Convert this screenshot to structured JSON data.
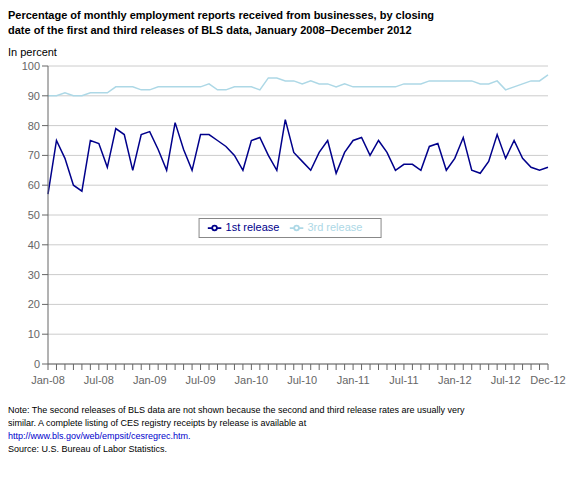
{
  "chart_data": {
    "type": "line",
    "title": "Percentage of monthly employment reports received from businesses, by closing",
    "subtitle": "date of the first and third releases of BLS data, January 2008–December 2012",
    "y_label": "In percent",
    "categories": [
      "Jan-08",
      null,
      null,
      null,
      null,
      null,
      "Jul-08",
      null,
      null,
      null,
      null,
      null,
      "Jan-09",
      null,
      null,
      null,
      null,
      null,
      "Jul-09",
      null,
      null,
      null,
      null,
      null,
      "Jan-10",
      null,
      null,
      null,
      null,
      null,
      "Jul-10",
      null,
      null,
      null,
      null,
      null,
      "Jan-11",
      null,
      null,
      null,
      null,
      null,
      "Jul-11",
      null,
      null,
      null,
      null,
      null,
      "Jan-12",
      null,
      null,
      null,
      null,
      null,
      "Jul-12",
      null,
      null,
      null,
      null,
      "Dec-12"
    ],
    "series": [
      {
        "name": "1st release",
        "color": "#00008B",
        "values": [
          57,
          75,
          69,
          60,
          58,
          75,
          74,
          66,
          79,
          77,
          65,
          77,
          78,
          72,
          65,
          81,
          72,
          65,
          77,
          77,
          75,
          73,
          70,
          65,
          75,
          76,
          70,
          65,
          82,
          71,
          68,
          65,
          71,
          75,
          64,
          71,
          75,
          76,
          70,
          75,
          71,
          65,
          67,
          67,
          65,
          73,
          74,
          65,
          69,
          76,
          65,
          64,
          68,
          77,
          69,
          75,
          69,
          66,
          65,
          66
        ]
      },
      {
        "name": "3rd release",
        "color": "#ADD8E6",
        "values": [
          90,
          90,
          91,
          90,
          90,
          91,
          91,
          91,
          93,
          93,
          93,
          92,
          92,
          93,
          93,
          93,
          93,
          93,
          93,
          94,
          92,
          92,
          93,
          93,
          93,
          92,
          96,
          96,
          95,
          95,
          94,
          95,
          94,
          94,
          93,
          94,
          93,
          93,
          93,
          93,
          93,
          93,
          94,
          94,
          94,
          95,
          95,
          95,
          95,
          95,
          95,
          94,
          94,
          95,
          92,
          93,
          94,
          95,
          95,
          97
        ]
      }
    ],
    "ylim": [
      0,
      100
    ],
    "yticks": [
      0,
      10,
      20,
      30,
      40,
      50,
      60,
      70,
      80,
      90,
      100
    ],
    "grid": true,
    "legend": "center",
    "annotations": [
      {
        "text": "Note: The second releases of BLS data are not shown because the second and third release rates are usually very"
      },
      {
        "text": "similar. A complete listing of CES registry receipts by release is available at"
      },
      {
        "text": "http://www.bls.gov/web/empsit/cesregrec.htm.",
        "color": "#0000CC"
      },
      {
        "text": "Source: U.S. Bureau of Labor Statistics."
      }
    ]
  }
}
